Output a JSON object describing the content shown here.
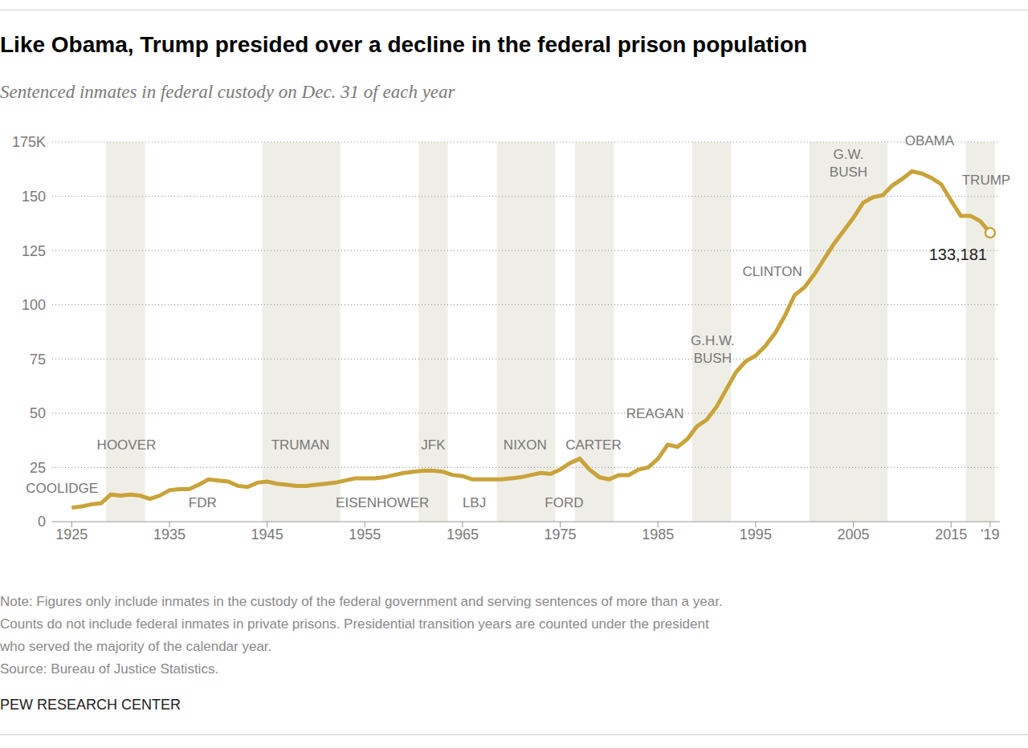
{
  "chart_data": {
    "type": "line",
    "title": "Like Obama, Trump presided over a decline in the federal prison population",
    "subtitle": "Sentenced inmates in federal custody on Dec. 31 of each year",
    "x": [
      1925,
      1926,
      1927,
      1928,
      1929,
      1930,
      1931,
      1932,
      1933,
      1934,
      1935,
      1936,
      1937,
      1938,
      1939,
      1940,
      1941,
      1942,
      1943,
      1944,
      1945,
      1946,
      1947,
      1948,
      1949,
      1950,
      1951,
      1952,
      1953,
      1954,
      1955,
      1956,
      1957,
      1958,
      1959,
      1960,
      1961,
      1962,
      1963,
      1964,
      1965,
      1966,
      1967,
      1968,
      1969,
      1970,
      1971,
      1972,
      1973,
      1974,
      1975,
      1976,
      1977,
      1978,
      1979,
      1980,
      1981,
      1982,
      1983,
      1984,
      1985,
      1986,
      1987,
      1988,
      1989,
      1990,
      1991,
      1992,
      1993,
      1994,
      1995,
      1996,
      1997,
      1998,
      1999,
      2000,
      2001,
      2002,
      2003,
      2004,
      2005,
      2006,
      2007,
      2008,
      2009,
      2010,
      2011,
      2012,
      2013,
      2014,
      2015,
      2016,
      2017,
      2018,
      2019
    ],
    "values": [
      6.5,
      7,
      8,
      8.5,
      12.5,
      12,
      12.5,
      12,
      10.5,
      12,
      14.5,
      15,
      15,
      17,
      19.5,
      19,
      18.5,
      16.5,
      16,
      18,
      18.5,
      17.5,
      17,
      16.5,
      16.5,
      17,
      17.5,
      18,
      19,
      20,
      20,
      20,
      20.5,
      21.5,
      22.5,
      23,
      23.5,
      23.5,
      23,
      21.5,
      21,
      19.5,
      19.5,
      19.5,
      19.5,
      20,
      20.5,
      21.5,
      22.5,
      22,
      24,
      27,
      29,
      24,
      20.5,
      19.5,
      21.5,
      21.5,
      24,
      25,
      29,
      35.5,
      34.5,
      38,
      44,
      47,
      53,
      61,
      69,
      74,
      76.5,
      81,
      87,
      95,
      104.5,
      108,
      114,
      121,
      128,
      134,
      140,
      147,
      149.5,
      150.5,
      155,
      158,
      161.5,
      160.5,
      158.5,
      155.5,
      148,
      141,
      141,
      138.5,
      133.181
    ],
    "color": "#c9a33a",
    "xlim": [
      1923,
      2020
    ],
    "xticks": [
      1925,
      1935,
      1945,
      1955,
      1965,
      1975,
      1985,
      1995,
      2005,
      2015,
      {
        "value": 2019,
        "label": "'19"
      }
    ],
    "ylim": [
      0,
      175
    ],
    "yticks": [
      0,
      25,
      50,
      75,
      100,
      125,
      150,
      {
        "value": 175,
        "label": "175K"
      }
    ],
    "grid": true,
    "end_label": {
      "x": 2019,
      "value": 133.181,
      "label": "133,181"
    },
    "presidents": [
      {
        "name": "COOLIDGE",
        "start": 1925,
        "end": 1928
      },
      {
        "name": "HOOVER",
        "start": 1929,
        "end": 1932
      },
      {
        "name": "FDR",
        "start": 1933,
        "end": 1944
      },
      {
        "name": "TRUMAN",
        "start": 1945,
        "end": 1952
      },
      {
        "name": "EISENHOWER",
        "start": 1953,
        "end": 1960
      },
      {
        "name": "JFK",
        "start": 1961,
        "end": 1963
      },
      {
        "name": "LBJ",
        "start": 1964,
        "end": 1968
      },
      {
        "name": "NIXON",
        "start": 1969,
        "end": 1974
      },
      {
        "name": "FORD",
        "start": 1975,
        "end": 1976
      },
      {
        "name": "CARTER",
        "start": 1977,
        "end": 1980
      },
      {
        "name": "REAGAN",
        "start": 1981,
        "end": 1988
      },
      {
        "name": "G.H.W. BUSH",
        "start": 1989,
        "end": 1992
      },
      {
        "name": "CLINTON",
        "start": 1993,
        "end": 2000
      },
      {
        "name": "G.W. BUSH",
        "start": 2001,
        "end": 2008
      },
      {
        "name": "OBAMA",
        "start": 2009,
        "end": 2016
      },
      {
        "name": "TRUMP",
        "start": 2017,
        "end": 2019
      }
    ],
    "note": [
      "Note: Figures only include inmates in the custody of the federal government and serving sentences of more than a year.",
      "Counts do not include federal inmates in private prisons. Presidential transition years are counted under the president",
      "who served the majority of the calendar year."
    ],
    "source": "Source: Bureau of Justice Statistics.",
    "credit": "PEW RESEARCH CENTER"
  }
}
